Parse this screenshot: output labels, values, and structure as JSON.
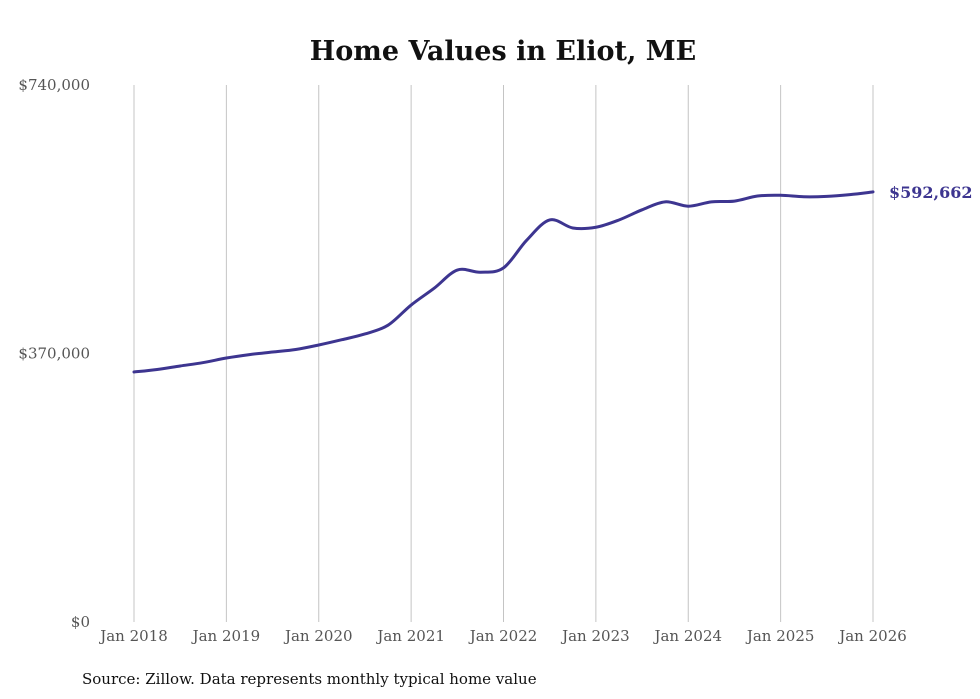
{
  "chart_data": {
    "type": "line",
    "title": "Home Values in Eliot, ME",
    "xlabel": "",
    "ylabel": "",
    "source": "Source: Zillow. Data represents monthly typical home value",
    "ylim": [
      0,
      740000
    ],
    "y_ticks": [
      {
        "value": 0,
        "label": "$0"
      },
      {
        "value": 370000,
        "label": "$370,000"
      },
      {
        "value": 740000,
        "label": "$740,000"
      }
    ],
    "x_ticks": [
      {
        "value": 2018,
        "label": "Jan 2018"
      },
      {
        "value": 2019,
        "label": "Jan 2019"
      },
      {
        "value": 2020,
        "label": "Jan 2020"
      },
      {
        "value": 2021,
        "label": "Jan 2021"
      },
      {
        "value": 2022,
        "label": "Jan 2022"
      },
      {
        "value": 2023,
        "label": "Jan 2023"
      },
      {
        "value": 2024,
        "label": "Jan 2024"
      },
      {
        "value": 2025,
        "label": "Jan 2025"
      },
      {
        "value": 2026,
        "label": "Jan 2026"
      }
    ],
    "xlim": [
      2018,
      2026
    ],
    "grid": "vertical",
    "series": [
      {
        "name": "Typical home value",
        "color": "#3d3590",
        "x": [
          2018,
          2018.25,
          2018.5,
          2018.75,
          2019,
          2019.25,
          2019.5,
          2019.75,
          2020,
          2020.25,
          2020.5,
          2020.75,
          2021,
          2021.25,
          2021.5,
          2021.75,
          2022,
          2022.25,
          2022.5,
          2022.75,
          2023,
          2023.25,
          2023.5,
          2023.75,
          2024,
          2024.25,
          2024.5,
          2024.75,
          2025,
          2025.25,
          2025.5,
          2025.75,
          2026
        ],
        "values": [
          344500,
          348000,
          352800,
          357500,
          363800,
          368500,
          372000,
          375500,
          381700,
          389000,
          396900,
          409000,
          436800,
          460000,
          485000,
          482000,
          488000,
          526000,
          554000,
          543000,
          544000,
          554000,
          568000,
          579000,
          573000,
          579000,
          580000,
          587000,
          588000,
          586000,
          586500,
          589000,
          592662
        ]
      }
    ],
    "end_label": "$592,662"
  }
}
